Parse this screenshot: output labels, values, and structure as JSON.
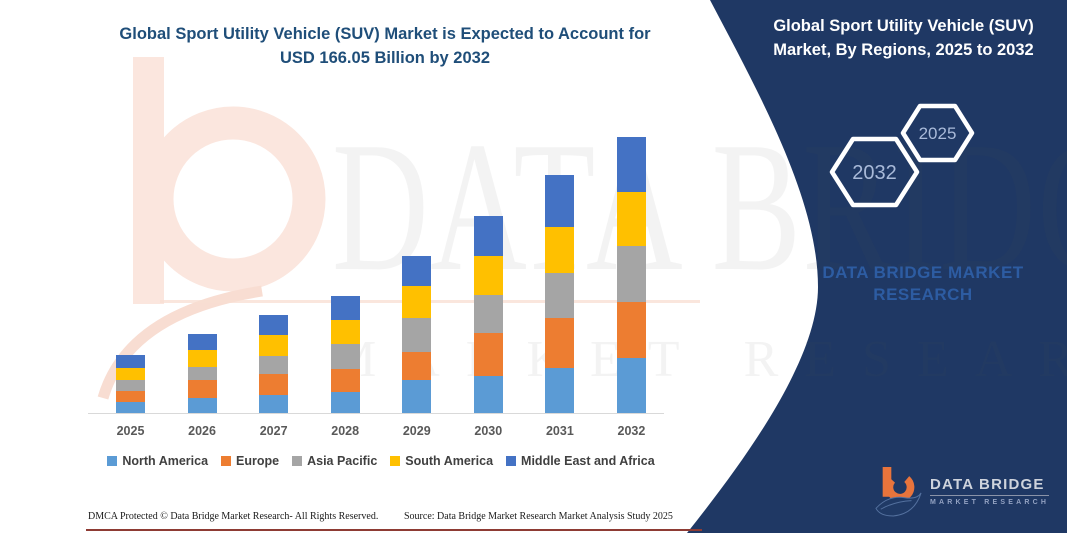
{
  "header": {
    "title_line1": "Global Sport Utility Vehicle (SUV) Market is Expected to Account for",
    "title_line2": "USD 166.05 Billion by 2032"
  },
  "side_panel": {
    "panel_color": "#1f3864",
    "title_line1": "Global Sport Utility Vehicle (SUV)",
    "title_line2": "Market, By Regions, 2025 to 2032",
    "hexagon_back_label": "2032",
    "hexagon_front_label": "2025",
    "hexagon_label_color": "#a9bad9",
    "brand_line1": "DATA BRIDGE MARKET",
    "brand_line2": "RESEARCH",
    "brand_color": "#2d5ca2"
  },
  "chart_data": {
    "type": "bar",
    "stacked": true,
    "unit": "USD Billion",
    "title": "Global Sport Utility Vehicle (SUV) Market is Expected to Account for USD 166.05 Billion by 2032",
    "categories": [
      "2025",
      "2026",
      "2027",
      "2028",
      "2029",
      "2030",
      "2031",
      "2032"
    ],
    "series": [
      {
        "name": "North America",
        "color": "#5b9bd5",
        "values": [
          6.6,
          9.3,
          10.6,
          12.6,
          20.0,
          22.1,
          27.0,
          32.9
        ]
      },
      {
        "name": "Europe",
        "color": "#ed7d31",
        "values": [
          6.6,
          10.8,
          12.6,
          14.0,
          16.6,
          26.0,
          30.0,
          34.1
        ]
      },
      {
        "name": "Asia Pacific",
        "color": "#a5a5a5",
        "values": [
          6.9,
          7.6,
          11.2,
          15.0,
          20.4,
          23.0,
          27.4,
          33.1
        ]
      },
      {
        "name": "South America",
        "color": "#ffc000",
        "values": [
          7.2,
          10.0,
          12.8,
          14.4,
          19.4,
          23.4,
          27.6,
          32.5
        ]
      },
      {
        "name": "Middle East and Africa",
        "color": "#4472c4",
        "values": [
          7.4,
          9.6,
          12.0,
          14.6,
          18.0,
          24.0,
          31.1,
          33.45
        ]
      }
    ],
    "totals_estimated": [
      34.7,
      47.3,
      59.2,
      70.6,
      94.4,
      118.5,
      143.1,
      166.05
    ],
    "legend_position": "bottom",
    "grid": false
  },
  "watermark": {
    "line1": "DATA BRIDGE",
    "line2": "MARKET RESEARCH"
  },
  "footer": {
    "dmca": "DMCA Protected © Data Bridge Market Research-  All Rights Reserved.",
    "source": "Source: Data Bridge Market Research  Market Analysis Study 2025"
  },
  "logo": {
    "name": "DATA BRIDGE",
    "subtitle": "MARKET RESEARCH"
  }
}
